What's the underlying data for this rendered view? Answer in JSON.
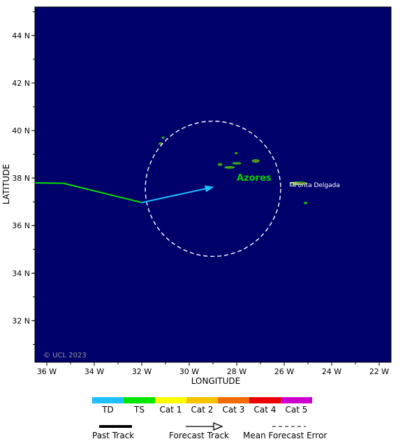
{
  "map": {
    "background_color": "#00006b",
    "lon_range": [
      -36.5,
      -21.5
    ],
    "lat_range": [
      30.25,
      45.2
    ],
    "lon_ticks": [
      {
        "value": -36,
        "label": "36 W"
      },
      {
        "value": -34,
        "label": "34 W"
      },
      {
        "value": -32,
        "label": "32 W"
      },
      {
        "value": -30,
        "label": "30 W"
      },
      {
        "value": -28,
        "label": "28 W"
      },
      {
        "value": -26,
        "label": "26 W"
      },
      {
        "value": -24,
        "label": "24 W"
      },
      {
        "value": -22,
        "label": "22 W"
      }
    ],
    "lat_ticks": [
      {
        "value": 44,
        "label": "44 N"
      },
      {
        "value": 42,
        "label": "42 N"
      },
      {
        "value": 40,
        "label": "40 N"
      },
      {
        "value": 38,
        "label": "38 N"
      },
      {
        "value": 36,
        "label": "36 N"
      },
      {
        "value": 34,
        "label": "34 N"
      },
      {
        "value": 32,
        "label": "32 N"
      }
    ],
    "xlabel": "LONGITUDE",
    "ylabel": "LATITUDE",
    "copyright": "© UCL 2023",
    "region_label": "Azores",
    "city_label": "Ponta Delgada",
    "city": {
      "lon": -25.67,
      "lat": 37.74
    },
    "region_label_pos": {
      "lon": -28.0,
      "lat": 38.0
    }
  },
  "track": {
    "past": [
      {
        "lon": -36.5,
        "lat": 37.8,
        "category": "TS"
      },
      {
        "lon": -35.3,
        "lat": 37.78,
        "category": "TS"
      },
      {
        "lon": -32.0,
        "lat": 36.97,
        "category": "TD"
      }
    ],
    "forecast": [
      {
        "lon": -32.0,
        "lat": 36.97
      },
      {
        "lon": -28.95,
        "lat": 37.63
      }
    ],
    "error_circle": {
      "center_lon": -29.0,
      "center_lat": 37.55,
      "radius_deg": 2.85
    }
  },
  "islands": [
    {
      "name": "Flores",
      "lon": -31.2,
      "lat": 39.45,
      "w": 0.15,
      "h": 0.08
    },
    {
      "name": "Corvo",
      "lon": -31.1,
      "lat": 39.7,
      "w": 0.05,
      "h": 0.04
    },
    {
      "name": "Graciosa",
      "lon": -28.02,
      "lat": 39.05,
      "w": 0.08,
      "h": 0.05
    },
    {
      "name": "Terceira",
      "lon": -27.2,
      "lat": 38.72,
      "w": 0.3,
      "h": 0.12
    },
    {
      "name": "Sao Jorge",
      "lon": -28.0,
      "lat": 38.62,
      "w": 0.35,
      "h": 0.06
    },
    {
      "name": "Faial",
      "lon": -28.7,
      "lat": 38.57,
      "w": 0.18,
      "h": 0.09
    },
    {
      "name": "Pico",
      "lon": -28.3,
      "lat": 38.45,
      "w": 0.4,
      "h": 0.08
    },
    {
      "name": "Sao Miguel",
      "lon": -25.4,
      "lat": 37.78,
      "w": 0.7,
      "h": 0.12
    },
    {
      "name": "Santa Maria",
      "lon": -25.1,
      "lat": 36.95,
      "w": 0.12,
      "h": 0.06
    }
  ],
  "legend": {
    "categories": [
      {
        "label": "TD",
        "color": "#1ec0ff"
      },
      {
        "label": "TS",
        "color": "#00e600"
      },
      {
        "label": "Cat 1",
        "color": "#ffff00"
      },
      {
        "label": "Cat 2",
        "color": "#f5c300"
      },
      {
        "label": "Cat 3",
        "color": "#f26a00"
      },
      {
        "label": "Cat 4",
        "color": "#ec0000"
      },
      {
        "label": "Cat 5",
        "color": "#cc00cc"
      }
    ],
    "past_track_label": "Past Track",
    "forecast_track_label": "Forecast Track",
    "mean_error_label": "Mean Forecast Error"
  },
  "colors": {
    "land_outline": "#00e600",
    "land_fill": "#7a7a28",
    "region_label": "#00d000",
    "circle": "#ffffff",
    "city_text": "#ffffff"
  }
}
